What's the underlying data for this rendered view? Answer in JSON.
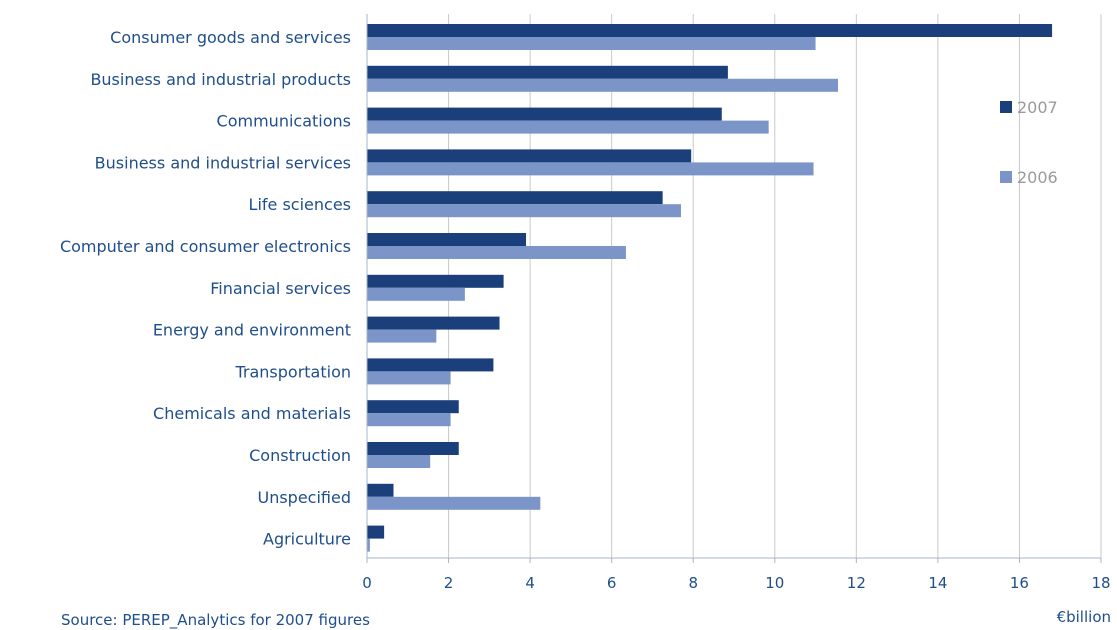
{
  "chart_data": {
    "type": "bar",
    "orientation": "horizontal",
    "categories": [
      "Consumer goods and services",
      "Business and industrial products",
      "Communications",
      "Business and industrial services",
      "Life sciences",
      "Computer and consumer electronics",
      "Financial services",
      "Energy and environment",
      "Transportation",
      "Chemicals and materials",
      "Construction",
      "Unspecified",
      "Agriculture"
    ],
    "series": [
      {
        "name": "2007",
        "color": "#1a3f7a",
        "values": [
          16.8,
          8.85,
          8.7,
          7.95,
          7.25,
          3.9,
          3.35,
          3.25,
          3.1,
          2.25,
          2.25,
          0.65,
          0.42
        ]
      },
      {
        "name": "2006",
        "color": "#7b95c9",
        "values": [
          11.0,
          11.55,
          9.85,
          10.95,
          7.7,
          6.35,
          2.4,
          1.7,
          2.05,
          2.05,
          1.55,
          4.25,
          0.07
        ]
      }
    ],
    "xticks": [
      "0",
      "2",
      "4",
      "6",
      "8",
      "10",
      "12",
      "14",
      "16",
      "18"
    ],
    "xlim": [
      0,
      18
    ],
    "unit_label": "€billion",
    "grid": true,
    "legend_position": "right"
  },
  "source_text": "Source: PEREP_Analytics for 2007 figures"
}
